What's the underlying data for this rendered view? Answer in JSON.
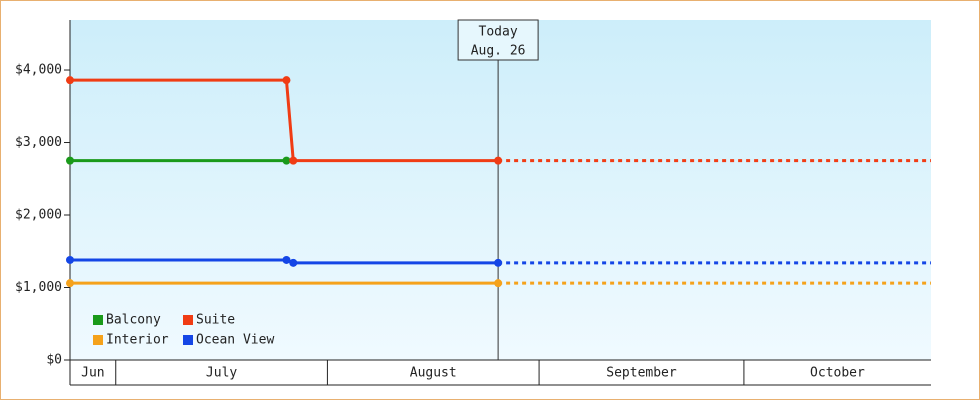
{
  "chart_data": {
    "type": "line",
    "xlim": [
      23.3,
      149.4
    ],
    "ylim": [
      0,
      4690
    ],
    "yticks": [
      {
        "value": 0,
        "label": "$0"
      },
      {
        "value": 1000,
        "label": "$1,000"
      },
      {
        "value": 2000,
        "label": "$2,000"
      },
      {
        "value": 3000,
        "label": "$3,000"
      },
      {
        "value": 4000,
        "label": "$4,000"
      }
    ],
    "months": {
      "labels": [
        "Jun",
        "July",
        "August",
        "September",
        "October"
      ],
      "edges": [
        23.3,
        30,
        61,
        92,
        122,
        149.4
      ]
    },
    "annotation": {
      "x": 86,
      "lines": [
        "Today",
        "Aug. 26"
      ]
    },
    "legend": "lower left",
    "series": [
      {
        "name": "Balcony",
        "color": "#1a9a1a",
        "x": [
          23.3,
          55
        ],
        "values": [
          2750,
          2750
        ]
      },
      {
        "name": "Suite",
        "color": "#f03c14",
        "x": [
          23.3,
          55,
          56,
          86
        ],
        "values": [
          3860,
          3860,
          2750,
          2750
        ],
        "forecast": {
          "x": [
            86,
            149.4
          ],
          "values": [
            2750,
            2750
          ]
        }
      },
      {
        "name": "Interior",
        "color": "#f5a21b",
        "x": [
          23.3,
          86
        ],
        "values": [
          1060,
          1060
        ],
        "forecast": {
          "x": [
            86,
            149.4
          ],
          "values": [
            1060,
            1060
          ]
        }
      },
      {
        "name": "Ocean View",
        "color": "#1446e6",
        "x": [
          23.3,
          55,
          56,
          86
        ],
        "values": [
          1380,
          1380,
          1340,
          1340
        ],
        "forecast": {
          "x": [
            86,
            149.4
          ],
          "values": [
            1340,
            1340
          ]
        }
      }
    ]
  }
}
